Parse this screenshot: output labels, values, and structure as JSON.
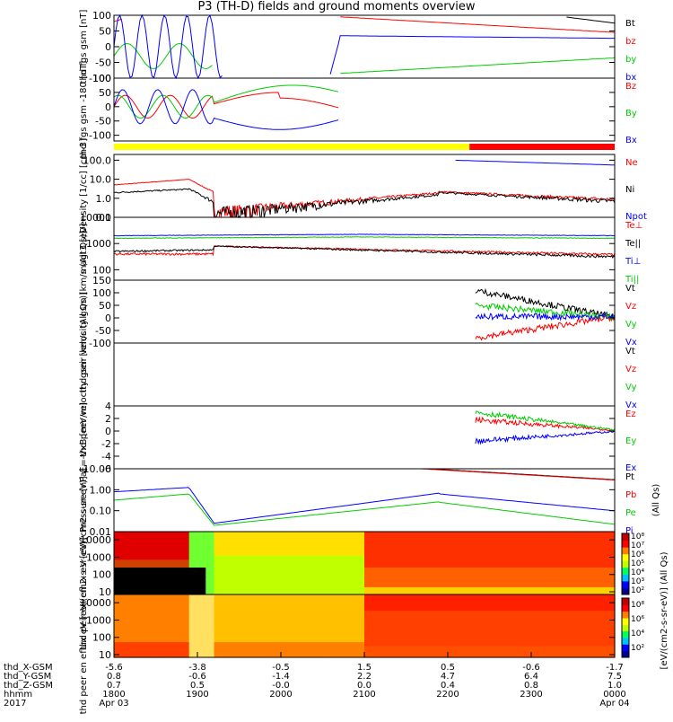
{
  "page": {
    "title": "P3 (TH-D) fields and ground moments overview"
  },
  "chart_data": [
    {
      "type": "line",
      "id": "p1",
      "ylabel": "thd fgs gsm [nT]",
      "ylim": [
        -100,
        100
      ],
      "ticks": [
        "100",
        "50",
        "0",
        "-50",
        "-100"
      ],
      "tickvals": [
        100,
        50,
        0,
        -50,
        -100
      ],
      "series": [
        {
          "name": "Bt",
          "color": "#000000"
        },
        {
          "name": "bz",
          "color": "#ff0000"
        },
        {
          "name": "by",
          "color": "#00cc00"
        },
        {
          "name": "bx",
          "color": "#0000ff"
        }
      ]
    },
    {
      "type": "line",
      "id": "p2",
      "ylabel": "thd fgs gsm -180 [nT]",
      "ylim": [
        -120,
        100
      ],
      "ticks": [
        "100",
        "50",
        "0",
        "-50",
        "-100"
      ],
      "tickvals": [
        100,
        50,
        0,
        -50,
        -100
      ],
      "series": [
        {
          "name": "Bz",
          "color": "#ff0000"
        },
        {
          "name": "By",
          "color": "#00cc00"
        },
        {
          "name": "Bx",
          "color": "#0000ff"
        }
      ]
    },
    {
      "type": "line",
      "id": "p3",
      "ylabel": "Density [1/cc] [cm-3]",
      "scale": "log",
      "ylim": [
        0.1,
        200
      ],
      "ticks": [
        "100.0",
        "10.0",
        "1.0",
        "0.1"
      ],
      "tickvals": [
        100,
        10,
        1,
        0.1
      ],
      "series": [
        {
          "name": "Ne",
          "color": "#ff0000"
        },
        {
          "name": "Ni",
          "color": "#000000"
        },
        {
          "name": "Npot",
          "color": "#0000ff"
        }
      ]
    },
    {
      "type": "line",
      "id": "p4",
      "ylabel": "magt3 [eV]",
      "scale": "log",
      "ylim": [
        40,
        10000
      ],
      "ticks": [
        "10000",
        "1000",
        "100"
      ],
      "tickvals": [
        10000,
        1000,
        100
      ],
      "series": [
        {
          "name": "Te⊥",
          "color": "#ff0000"
        },
        {
          "name": "Te||",
          "color": "#000000"
        },
        {
          "name": "Ti⊥",
          "color": "#0000ff"
        },
        {
          "name": "Ti||",
          "color": "#00cc00"
        }
      ]
    },
    {
      "type": "line",
      "id": "p5",
      "ylabel": "thd peir velocity gsm [km/s (All Qs)]",
      "ylim": [
        -100,
        150
      ],
      "ticks": [
        "150",
        "100",
        "50",
        "0",
        "-50",
        "-100"
      ],
      "tickvals": [
        150,
        100,
        50,
        0,
        -50,
        -100
      ],
      "series": [
        {
          "name": "Vt",
          "color": "#000000"
        },
        {
          "name": "Vz",
          "color": "#ff0000"
        },
        {
          "name": "Vy",
          "color": "#00cc00"
        },
        {
          "name": "Vx",
          "color": "#0000ff"
        }
      ]
    },
    {
      "type": "line",
      "id": "p6",
      "ylabel": "thd peer velocity gsm [km/s (All Qs)]",
      "ylim": [
        0,
        1
      ],
      "ticks": [],
      "tickvals": [],
      "series": [
        {
          "name": "Vt",
          "color": "#000000"
        },
        {
          "name": "Vz",
          "color": "#ff0000"
        },
        {
          "name": "Vy",
          "color": "#00cc00"
        },
        {
          "name": "Vx",
          "color": "#0000ff"
        }
      ]
    },
    {
      "type": "line",
      "id": "p7",
      "ylabel": "E=-VxB [mV/m]",
      "ylim": [
        -6,
        4
      ],
      "ticks": [
        "4",
        "2",
        "0",
        "-2",
        "-4",
        "-6"
      ],
      "tickvals": [
        4,
        2,
        0,
        -2,
        -4,
        -6
      ],
      "series": [
        {
          "name": "Ez",
          "color": "#ff0000"
        },
        {
          "name": "Ey",
          "color": "#00cc00"
        },
        {
          "name": "Ex",
          "color": "#0000ff"
        }
      ]
    },
    {
      "type": "line",
      "id": "p8",
      "ylabel": "Pressure [nPa]",
      "scale": "log",
      "ylim": [
        0.01,
        10
      ],
      "ticks": [
        "10.00",
        "1.00",
        "0.10",
        "0.01"
      ],
      "tickvals": [
        10,
        1,
        0.1,
        0.01
      ],
      "series": [
        {
          "name": "Pt",
          "color": "#000000"
        },
        {
          "name": "Pb",
          "color": "#ff0000"
        },
        {
          "name": "Pe",
          "color": "#00cc00"
        },
        {
          "name": "Pi",
          "color": "#0000ff"
        }
      ],
      "legend_note": "(All Qs)"
    },
    {
      "type": "heatmap",
      "id": "p9",
      "ylabel": "thd peir en eflux eV [eV/(cm2-s-sr-eV)]",
      "scale": "log",
      "ylim": [
        7,
        30000
      ],
      "ticks": [
        "10000",
        "1000",
        "100",
        "10"
      ],
      "tickvals": [
        10000,
        1000,
        100,
        10
      ]
    },
    {
      "type": "heatmap",
      "id": "p10",
      "ylabel": "thd peer en eflux eV [eV/(cm2-s-sr-eV)]",
      "scale": "log",
      "ylim": [
        7,
        30000
      ],
      "ticks": [
        "10000",
        "1000",
        "100",
        "10"
      ],
      "tickvals": [
        10000,
        1000,
        100,
        10
      ]
    }
  ],
  "colorbar": {
    "label": "[eV/(cm2-s-sr-eV)] (All Qs)",
    "ticks": [
      "10⁸",
      "10⁷",
      "10⁶",
      "10⁵",
      "10⁴",
      "10³",
      "10²"
    ],
    "ticks2": [
      "10⁸",
      "10⁶",
      "10⁴",
      "10²"
    ]
  },
  "xaxis": {
    "rows": [
      {
        "label": "thd_X-GSM",
        "values": [
          "-5.6",
          "-3.8",
          "-0.5",
          "1.5",
          "0.5",
          "-0.6",
          "-1.7"
        ]
      },
      {
        "label": "thd_Y-GSM",
        "values": [
          "0.8",
          "-0.6",
          "-1.4",
          "2.2",
          "4.7",
          "6.4",
          "7.5"
        ]
      },
      {
        "label": "thd_Z-GSM",
        "values": [
          "0.7",
          "0.5",
          "-0.0",
          "0.0",
          "0.4",
          "0.8",
          "1.0"
        ]
      },
      {
        "label": "hhmm",
        "values": [
          "1800",
          "1900",
          "2000",
          "2100",
          "2200",
          "2300",
          "0000"
        ]
      }
    ],
    "year": "2017",
    "dates": {
      "start": "Apr 03",
      "end": "Apr 04"
    }
  }
}
